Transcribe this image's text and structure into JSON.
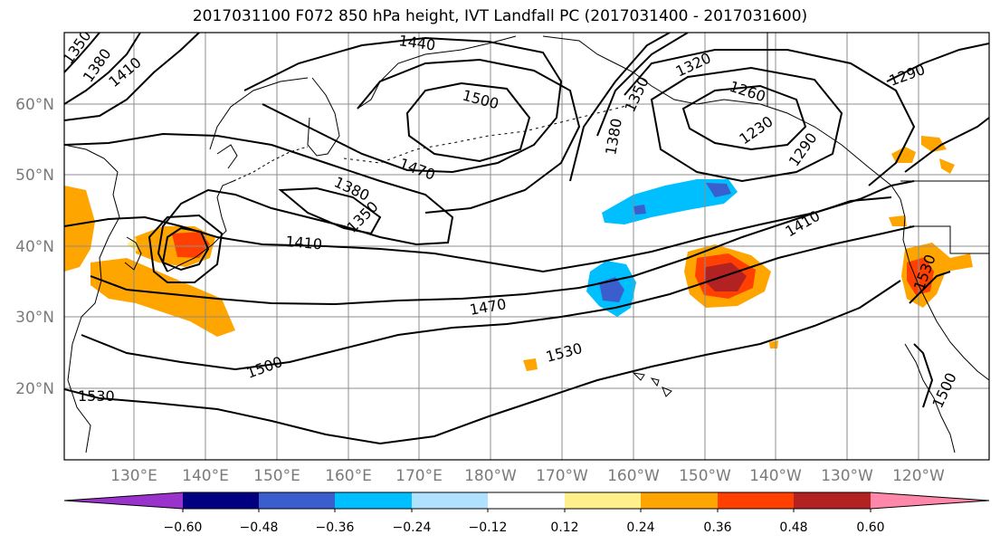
{
  "title": "2017031100 F072 850 hPa height, IVT Landfall PC (2017031400 - 2017031600)",
  "lon_labels": [
    "130°E",
    "140°E",
    "150°E",
    "160°E",
    "170°E",
    "180°W",
    "170°W",
    "160°W",
    "150°W",
    "140°W",
    "130°W",
    "120°W"
  ],
  "lat_labels": [
    "60°N",
    "50°N",
    "40°N",
    "30°N",
    "20°N"
  ],
  "colorbar": {
    "colors": [
      "#9933cc",
      "#000080",
      "#3a5fcd",
      "#00bfff",
      "#b0e2ff",
      "#ffffff",
      "#fff08c",
      "#ffa500",
      "#ff4000",
      "#b22222",
      "#ff88aa"
    ],
    "tick_labels": [
      "−0.60",
      "−0.48",
      "−0.36",
      "−0.24",
      "−0.12",
      "0.12",
      "0.24",
      "0.36",
      "0.48",
      "0.60"
    ]
  },
  "contour_labels": [
    "1350",
    "1380",
    "1410",
    "1440",
    "1500",
    "1470",
    "1380",
    "1350",
    "1410",
    "1320",
    "1260",
    "1230",
    "1290",
    "1350",
    "1380",
    "1290",
    "1410",
    "1470",
    "1500",
    "1530",
    "1530",
    "1500",
    "1530"
  ]
}
